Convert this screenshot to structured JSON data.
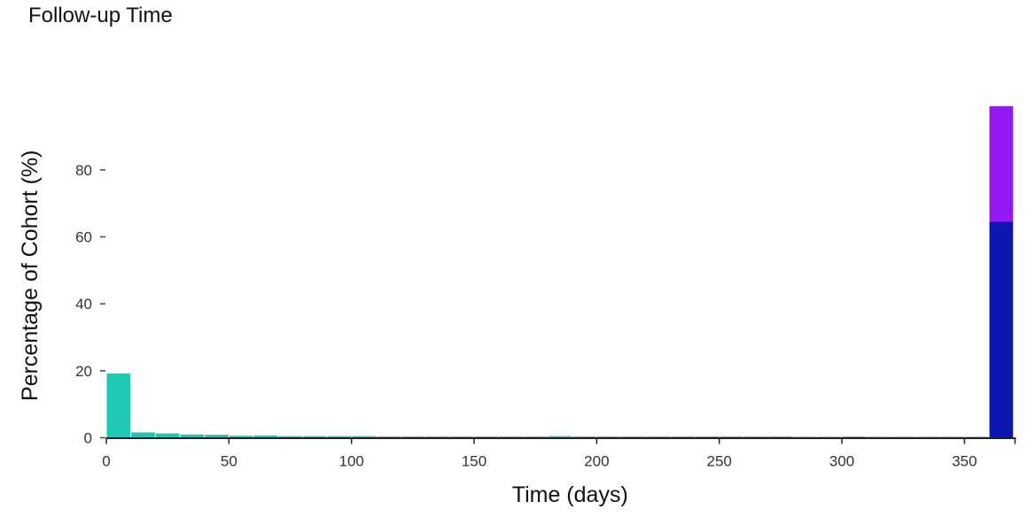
{
  "title": "Follow-up Time",
  "chart_data": {
    "type": "bar",
    "title": "Follow-up Time",
    "xlabel": "Time (days)",
    "ylabel": "Percentage of Cohort (%)",
    "xlim": [
      0,
      371
    ],
    "ylim": [
      0,
      99
    ],
    "x_ticks": [
      0,
      50,
      100,
      150,
      200,
      250,
      300,
      350
    ],
    "y_ticks": [
      0,
      20,
      40,
      60,
      80
    ],
    "bin_width": 10,
    "grid": false,
    "legend": "none",
    "bars": [
      {
        "x0": 0,
        "x1": 10,
        "value": 19.2,
        "color": "#1ec8b2"
      },
      {
        "x0": 10,
        "x1": 20,
        "value": 1.6,
        "color": "#1ec8b2"
      },
      {
        "x0": 20,
        "x1": 30,
        "value": 1.3,
        "color": "#1ec8b2"
      },
      {
        "x0": 30,
        "x1": 40,
        "value": 1.0,
        "color": "#1ec8b2"
      },
      {
        "x0": 40,
        "x1": 50,
        "value": 0.9,
        "color": "#1ec8b2"
      },
      {
        "x0": 50,
        "x1": 60,
        "value": 0.6,
        "color": "#1ec8b2"
      },
      {
        "x0": 60,
        "x1": 70,
        "value": 0.7,
        "color": "#1ec8b2"
      },
      {
        "x0": 70,
        "x1": 80,
        "value": 0.5,
        "color": "#1ec8b2"
      },
      {
        "x0": 80,
        "x1": 90,
        "value": 0.5,
        "color": "#1ec8b2"
      },
      {
        "x0": 90,
        "x1": 100,
        "value": 0.5,
        "color": "#1ec8b2"
      },
      {
        "x0": 100,
        "x1": 110,
        "value": 0.5,
        "color": "#1ec8b2"
      },
      {
        "x0": 110,
        "x1": 120,
        "value": 0.4,
        "color": "#1ec8b2"
      },
      {
        "x0": 120,
        "x1": 130,
        "value": 0.4,
        "color": "#1ec8b2"
      },
      {
        "x0": 130,
        "x1": 140,
        "value": 0.4,
        "color": "#1ec8b2"
      },
      {
        "x0": 140,
        "x1": 150,
        "value": 0.4,
        "color": "#1ec8b2"
      },
      {
        "x0": 150,
        "x1": 160,
        "value": 0.4,
        "color": "#1ec8b2"
      },
      {
        "x0": 160,
        "x1": 170,
        "value": 0.4,
        "color": "#1ec8b2"
      },
      {
        "x0": 170,
        "x1": 180,
        "value": 0.4,
        "color": "#1ec8b2"
      },
      {
        "x0": 180,
        "x1": 190,
        "value": 0.5,
        "color": "#1ec8b2"
      },
      {
        "x0": 190,
        "x1": 200,
        "value": 0.4,
        "color": "#1ec8b2"
      },
      {
        "x0": 200,
        "x1": 210,
        "value": 0.4,
        "color": "#1ec8b2"
      },
      {
        "x0": 210,
        "x1": 220,
        "value": 0.4,
        "color": "#1ec8b2"
      },
      {
        "x0": 220,
        "x1": 230,
        "value": 0.4,
        "color": "#1ec8b2"
      },
      {
        "x0": 230,
        "x1": 240,
        "value": 0.4,
        "color": "#1ec8b2"
      },
      {
        "x0": 240,
        "x1": 250,
        "value": 0.4,
        "color": "#1ec8b2"
      },
      {
        "x0": 250,
        "x1": 260,
        "value": 0.4,
        "color": "#1ec8b2"
      },
      {
        "x0": 260,
        "x1": 270,
        "value": 0.4,
        "color": "#1ec8b2"
      },
      {
        "x0": 270,
        "x1": 280,
        "value": 0.4,
        "color": "#1ec8b2"
      },
      {
        "x0": 280,
        "x1": 290,
        "value": 0.3,
        "color": "#1ec8b2"
      },
      {
        "x0": 290,
        "x1": 300,
        "value": 0.3,
        "color": "#1ec8b2"
      },
      {
        "x0": 300,
        "x1": 310,
        "value": 0.4,
        "color": "#1ec8b2"
      },
      {
        "x0": 310,
        "x1": 320,
        "value": 0.3,
        "color": "#1ec8b2"
      },
      {
        "x0": 320,
        "x1": 330,
        "value": 0.3,
        "color": "#1ec8b2"
      },
      {
        "x0": 330,
        "x1": 340,
        "value": 0.3,
        "color": "#1ec8b2"
      },
      {
        "x0": 340,
        "x1": 350,
        "value": 0.3,
        "color": "#1ec8b2"
      },
      {
        "x0": 350,
        "x1": 360,
        "value": 0.3,
        "color": "#1ec8b2"
      }
    ],
    "stacked_bar": {
      "x0": 360,
      "x1": 370,
      "segments": [
        {
          "value": 64.5,
          "color": "#0c16b0"
        },
        {
          "value": 34.5,
          "color": "#9218f2"
        }
      ]
    }
  }
}
